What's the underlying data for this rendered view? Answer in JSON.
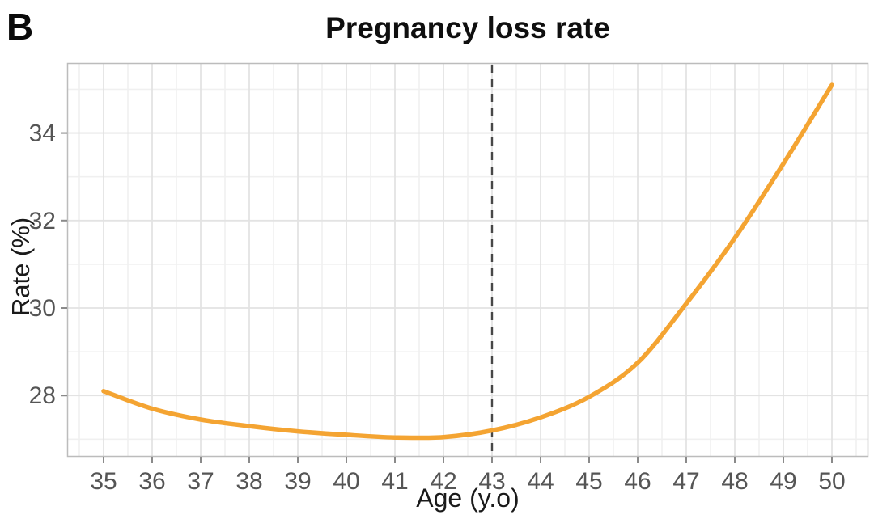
{
  "panel_label": "B",
  "title": "Pregnancy loss rate",
  "chart_data": {
    "type": "line",
    "title": "Pregnancy loss rate",
    "xlabel": "Age (y.o)",
    "ylabel": "Rate (%)",
    "x": [
      35,
      36,
      37,
      38,
      39,
      40,
      41,
      42,
      43,
      44,
      45,
      46,
      47,
      48,
      49,
      50
    ],
    "series": [
      {
        "name": "Pregnancy loss rate",
        "values": [
          28.1,
          27.7,
          27.45,
          27.3,
          27.18,
          27.1,
          27.04,
          27.05,
          27.2,
          27.5,
          27.97,
          28.75,
          30.1,
          31.6,
          33.3,
          35.1
        ]
      }
    ],
    "xlim": [
      34.25,
      50.75
    ],
    "ylim": [
      26.6,
      35.6
    ],
    "x_ticks": [
      35,
      36,
      37,
      38,
      39,
      40,
      41,
      42,
      43,
      44,
      45,
      46,
      47,
      48,
      49,
      50
    ],
    "y_ticks": [
      28,
      30,
      32,
      34
    ],
    "y_minor_ticks": [
      27,
      29,
      31,
      33,
      35
    ],
    "x_minor_step": 0.5,
    "reference_line": {
      "x": 43,
      "style": "dashed"
    },
    "grid": "major+minor",
    "legend": "none"
  },
  "colors": {
    "line": "#F4A432",
    "reference_line": "#474747",
    "grid_major": "#e3e3e3",
    "grid_minor": "#f0f0f0",
    "panel_border": "#bcbcbc",
    "tick_mark": "#8a8a8a",
    "tick_label": "#555555",
    "background": "#ffffff"
  }
}
